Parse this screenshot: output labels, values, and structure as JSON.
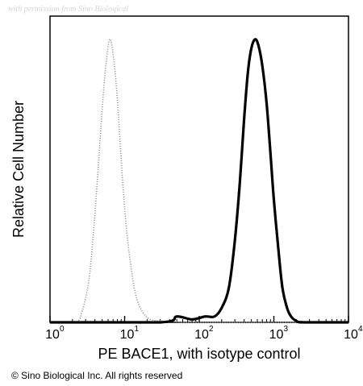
{
  "watermark": "with permission from Sino Biological",
  "copyright": "© Sino Biological Inc. All rights reserved",
  "chart_data": {
    "type": "histogram",
    "xlabel": "PE  BACE1,  with isotype control",
    "ylabel": "Relative Cell Number",
    "xscale": "log",
    "xlim": [
      1,
      10000
    ],
    "ylim": [
      0,
      1
    ],
    "x_ticks": [
      {
        "value": 1,
        "base": "10",
        "exp": "0"
      },
      {
        "value": 10,
        "base": "10",
        "exp": "1"
      },
      {
        "value": 100,
        "base": "10",
        "exp": "2"
      },
      {
        "value": 1000,
        "base": "10",
        "exp": "3"
      },
      {
        "value": 10000,
        "base": "10",
        "exp": "4"
      }
    ],
    "grid": false,
    "legend": "none",
    "series": [
      {
        "style": "dotted",
        "color": "#9a9a9a",
        "x": [
          1,
          2.2,
          2.7,
          3.3,
          3.8,
          4.4,
          5.0,
          5.6,
          6.3,
          7.0,
          7.8,
          8.6,
          9.6,
          11,
          13,
          15,
          18,
          22,
          30,
          45,
          100,
          10000
        ],
        "y": [
          0,
          0,
          0.04,
          0.14,
          0.3,
          0.52,
          0.73,
          0.88,
          0.97,
          0.92,
          0.8,
          0.64,
          0.45,
          0.28,
          0.14,
          0.07,
          0.03,
          0.01,
          0.005,
          0.003,
          0,
          0
        ]
      },
      {
        "style": "solid",
        "color": "#000000",
        "x": [
          1,
          30,
          50,
          80,
          120,
          160,
          200,
          250,
          300,
          350,
          400,
          450,
          500,
          560,
          620,
          700,
          800,
          900,
          1000,
          1150,
          1300,
          1500,
          1700,
          2000,
          2500,
          10000
        ],
        "y": [
          0,
          0,
          0.02,
          0.01,
          0.02,
          0.02,
          0.05,
          0.12,
          0.28,
          0.48,
          0.7,
          0.86,
          0.94,
          0.97,
          0.95,
          0.88,
          0.75,
          0.58,
          0.42,
          0.25,
          0.12,
          0.05,
          0.02,
          0.005,
          0,
          0
        ]
      }
    ]
  }
}
